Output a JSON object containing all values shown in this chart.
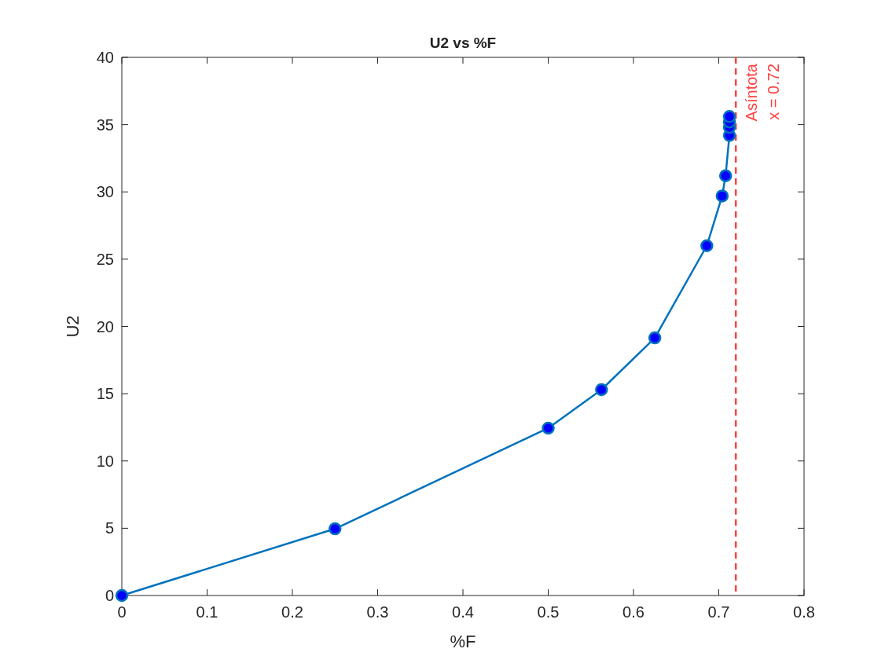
{
  "chart_data": {
    "type": "line",
    "title": "U2 vs %F",
    "xlabel": "%F",
    "ylabel": "U2",
    "x": [
      0,
      0.25,
      0.5,
      0.5625,
      0.625,
      0.686,
      0.704,
      0.708,
      0.7125,
      0.7125,
      0.7125,
      0.7125
    ],
    "series": [
      {
        "color": "#0072bd",
        "values": [
          0,
          4.96,
          12.44,
          15.3,
          19.15,
          26.0,
          29.7,
          31.2,
          34.2,
          34.8,
          35.2,
          35.6
        ]
      }
    ],
    "marker": "circle",
    "line_style": "solid",
    "xlim": [
      0,
      0.8
    ],
    "xticks": [
      0,
      0.1,
      0.2,
      0.3,
      0.4,
      0.5,
      0.6,
      0.7,
      0.8
    ],
    "ylim": [
      0,
      40
    ],
    "yticks": [
      0,
      5,
      10,
      15,
      20,
      25,
      30,
      35,
      40
    ],
    "ref_lines": [
      {
        "axis": "x",
        "value": 0.72,
        "label": "Asíntota\nx = 0.72",
        "color": "#ff4040",
        "line_style": "dashed"
      }
    ]
  }
}
